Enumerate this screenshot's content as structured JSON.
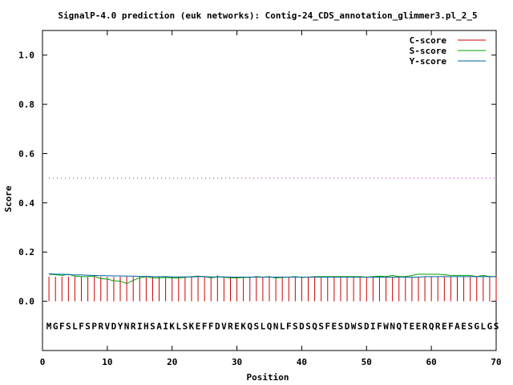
{
  "chart_data": {
    "type": "line",
    "title": "SignalP-4.0 prediction (euk networks): Contig-24_CDS_annotation_glimmer3.pl_2_5",
    "xlabel": "Position",
    "ylabel": "Score",
    "xlim": [
      0,
      70
    ],
    "ylim": [
      -0.2,
      1.1
    ],
    "xticks": [
      0,
      10,
      20,
      30,
      40,
      50,
      60,
      70
    ],
    "yticks": [
      0.0,
      0.2,
      0.4,
      0.6,
      0.8,
      1.0
    ],
    "ytick_labels": [
      "0.0",
      "0.2",
      "0.4",
      "0.6",
      "0.8",
      "1.0"
    ],
    "threshold": 0.5,
    "sequence": "MGFSLFSPRVDYNRIHSAIKLSKEFFDVREKQSLQNLFSDSQSFESDWSDIFWNQTEERQREFAESGLGS",
    "sequence_y": -0.1,
    "legend_position": "top-right",
    "series": [
      {
        "name": "C-score",
        "color": "#cc0000",
        "style": "impulse",
        "values": [
          0.1,
          0.1,
          0.1,
          0.1,
          0.1,
          0.1,
          0.1,
          0.1,
          0.1,
          0.1,
          0.099,
          0.1,
          0.1,
          0.1,
          0.1,
          0.1,
          0.1,
          0.1,
          0.1,
          0.1,
          0.1,
          0.1,
          0.1,
          0.1,
          0.1,
          0.1,
          0.105,
          0.1,
          0.1,
          0.1,
          0.1,
          0.1,
          0.1,
          0.1,
          0.1,
          0.1,
          0.1,
          0.1,
          0.1,
          0.1,
          0.1,
          0.1,
          0.1,
          0.1,
          0.1,
          0.1,
          0.1,
          0.1,
          0.1,
          0.1,
          0.1,
          0.1,
          0.1,
          0.1,
          0.1,
          0.1,
          0.1,
          0.1,
          0.1,
          0.1,
          0.1,
          0.1,
          0.1,
          0.1,
          0.1,
          0.1,
          0.1,
          0.1,
          0.1,
          0.1
        ]
      },
      {
        "name": "S-score",
        "color": "#00a000",
        "style": "line",
        "values": [
          0.11,
          0.108,
          0.105,
          0.11,
          0.102,
          0.1,
          0.1,
          0.102,
          0.092,
          0.09,
          0.083,
          0.082,
          0.072,
          0.085,
          0.095,
          0.1,
          0.095,
          0.095,
          0.097,
          0.095,
          0.095,
          0.097,
          0.1,
          0.102,
          0.1,
          0.095,
          0.1,
          0.098,
          0.095,
          0.095,
          0.097,
          0.097,
          0.1,
          0.098,
          0.1,
          0.095,
          0.097,
          0.098,
          0.1,
          0.097,
          0.098,
          0.1,
          0.1,
          0.1,
          0.1,
          0.1,
          0.1,
          0.1,
          0.1,
          0.098,
          0.1,
          0.102,
          0.1,
          0.105,
          0.1,
          0.1,
          0.105,
          0.11,
          0.11,
          0.11,
          0.11,
          0.108,
          0.105,
          0.105,
          0.105,
          0.105,
          0.1,
          0.105,
          0.1,
          0.1
        ]
      },
      {
        "name": "Y-score",
        "color": "#0060a0",
        "style": "line",
        "values": [
          0.112,
          0.11,
          0.11,
          0.108,
          0.107,
          0.107,
          0.106,
          0.105,
          0.104,
          0.104,
          0.103,
          0.103,
          0.102,
          0.102,
          0.101,
          0.101,
          0.1,
          0.1,
          0.1,
          0.099,
          0.099,
          0.099,
          0.099,
          0.1,
          0.1,
          0.099,
          0.099,
          0.099,
          0.098,
          0.098,
          0.098,
          0.098,
          0.098,
          0.098,
          0.098,
          0.098,
          0.098,
          0.098,
          0.098,
          0.098,
          0.098,
          0.098,
          0.098,
          0.098,
          0.098,
          0.098,
          0.098,
          0.098,
          0.098,
          0.098,
          0.098,
          0.098,
          0.098,
          0.098,
          0.098,
          0.098,
          0.098,
          0.098,
          0.1,
          0.1,
          0.1,
          0.1,
          0.1,
          0.1,
          0.1,
          0.1,
          0.1,
          0.1,
          0.1,
          0.1
        ]
      }
    ]
  }
}
